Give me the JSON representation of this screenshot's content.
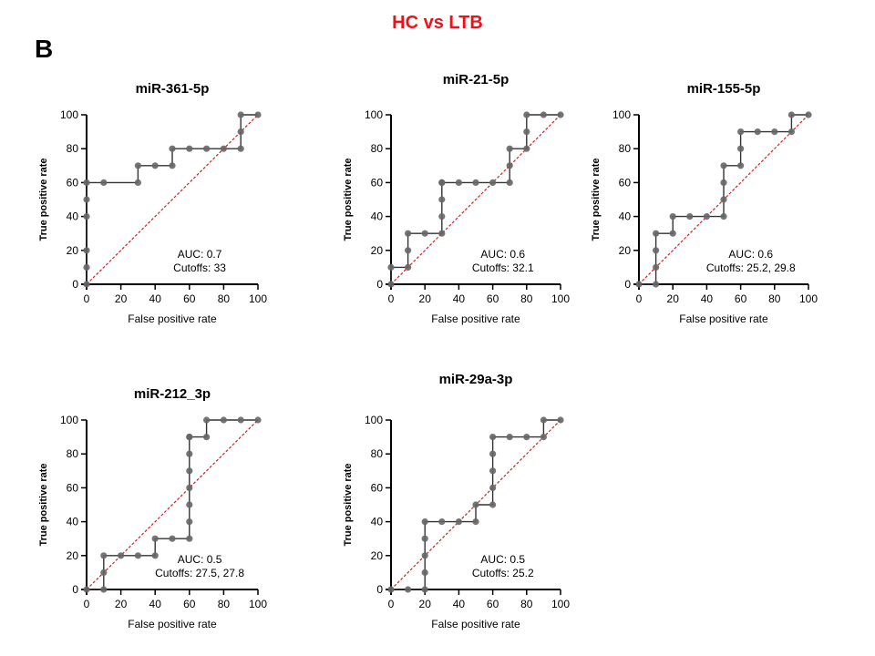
{
  "figure": {
    "title": "HC vs LTB",
    "panel_label": "B",
    "title_color": "#e8141c",
    "curve_color": "#333333",
    "point_color": "#666666",
    "reference_line_color": "#cc2222"
  },
  "chart_data": [
    {
      "type": "line",
      "title": "miR-361-5p",
      "xlabel": "False positive rate",
      "ylabel": "True positive rate",
      "xlim": [
        0,
        100
      ],
      "ylim": [
        0,
        100
      ],
      "xticks": [
        0,
        20,
        40,
        60,
        80,
        100
      ],
      "yticks": [
        0,
        20,
        40,
        60,
        80,
        100
      ],
      "reference_line": true,
      "auc_text": "AUC: 0.7",
      "cutoffs_text": "Cutoffs: 33",
      "series": [
        {
          "x": [
            0,
            0,
            0,
            0,
            0,
            0,
            10,
            30,
            30,
            40,
            50,
            50,
            60,
            70,
            80,
            90,
            90,
            90,
            100
          ],
          "y": [
            0,
            10,
            20,
            40,
            50,
            60,
            60,
            60,
            70,
            70,
            70,
            80,
            80,
            80,
            80,
            80,
            90,
            100,
            100
          ]
        }
      ]
    },
    {
      "type": "line",
      "title": "miR-21-5p",
      "xlabel": "False positive rate",
      "ylabel": "True positive rate",
      "xlim": [
        0,
        100
      ],
      "ylim": [
        0,
        100
      ],
      "xticks": [
        0,
        20,
        40,
        60,
        80,
        100
      ],
      "yticks": [
        0,
        20,
        40,
        60,
        80,
        100
      ],
      "reference_line": true,
      "auc_text": "AUC: 0.6",
      "cutoffs_text": "Cutoffs: 32.1",
      "series": [
        {
          "x": [
            0,
            0,
            10,
            10,
            10,
            20,
            30,
            30,
            30,
            30,
            30,
            40,
            50,
            60,
            70,
            70,
            70,
            80,
            80,
            80,
            90,
            100
          ],
          "y": [
            0,
            10,
            10,
            20,
            30,
            30,
            30,
            40,
            50,
            60,
            60,
            60,
            60,
            60,
            60,
            70,
            80,
            80,
            90,
            100,
            100,
            100
          ]
        }
      ]
    },
    {
      "type": "line",
      "title": "miR-155-5p",
      "xlabel": "False positive rate",
      "ylabel": "True positive rate",
      "xlim": [
        0,
        100
      ],
      "ylim": [
        0,
        100
      ],
      "xticks": [
        0,
        20,
        40,
        60,
        80,
        100
      ],
      "yticks": [
        0,
        20,
        40,
        60,
        80,
        100
      ],
      "reference_line": true,
      "auc_text": "AUC: 0.6",
      "cutoffs_text": "Cutoffs: 25.2, 29.8",
      "series": [
        {
          "x": [
            0,
            10,
            10,
            10,
            10,
            20,
            20,
            30,
            40,
            50,
            50,
            50,
            50,
            60,
            60,
            60,
            70,
            80,
            90,
            90,
            100
          ],
          "y": [
            0,
            0,
            10,
            20,
            30,
            30,
            40,
            40,
            40,
            40,
            50,
            60,
            70,
            70,
            80,
            90,
            90,
            90,
            90,
            100,
            100
          ]
        }
      ]
    },
    {
      "type": "line",
      "title": "miR-212_3p",
      "xlabel": "False positive rate",
      "ylabel": "True positive rate",
      "xlim": [
        0,
        100
      ],
      "ylim": [
        0,
        100
      ],
      "xticks": [
        0,
        20,
        40,
        60,
        80,
        100
      ],
      "yticks": [
        0,
        20,
        40,
        60,
        80,
        100
      ],
      "reference_line": true,
      "auc_text": "AUC: 0.5",
      "cutoffs_text": "Cutoffs: 27.5, 27.8",
      "series": [
        {
          "x": [
            0,
            10,
            10,
            10,
            20,
            30,
            40,
            40,
            50,
            60,
            60,
            60,
            60,
            60,
            60,
            60,
            60,
            70,
            70,
            80,
            90,
            100
          ],
          "y": [
            0,
            0,
            10,
            20,
            20,
            20,
            20,
            30,
            30,
            30,
            40,
            50,
            60,
            70,
            80,
            90,
            90,
            90,
            100,
            100,
            100,
            100
          ]
        }
      ]
    },
    {
      "type": "line",
      "title": "miR-29a-3p",
      "xlabel": "False positive rate",
      "ylabel": "True positive rate",
      "xlim": [
        0,
        100
      ],
      "ylim": [
        0,
        100
      ],
      "xticks": [
        0,
        20,
        40,
        60,
        80,
        100
      ],
      "yticks": [
        0,
        20,
        40,
        60,
        80,
        100
      ],
      "reference_line": true,
      "auc_text": "AUC: 0.5",
      "cutoffs_text": "Cutoffs: 25.2",
      "series": [
        {
          "x": [
            0,
            10,
            20,
            20,
            20,
            20,
            20,
            30,
            40,
            50,
            50,
            60,
            60,
            60,
            60,
            60,
            70,
            80,
            90,
            90,
            100
          ],
          "y": [
            0,
            0,
            0,
            10,
            20,
            30,
            40,
            40,
            40,
            40,
            50,
            50,
            60,
            70,
            80,
            90,
            90,
            90,
            90,
            100,
            100
          ]
        }
      ]
    }
  ]
}
